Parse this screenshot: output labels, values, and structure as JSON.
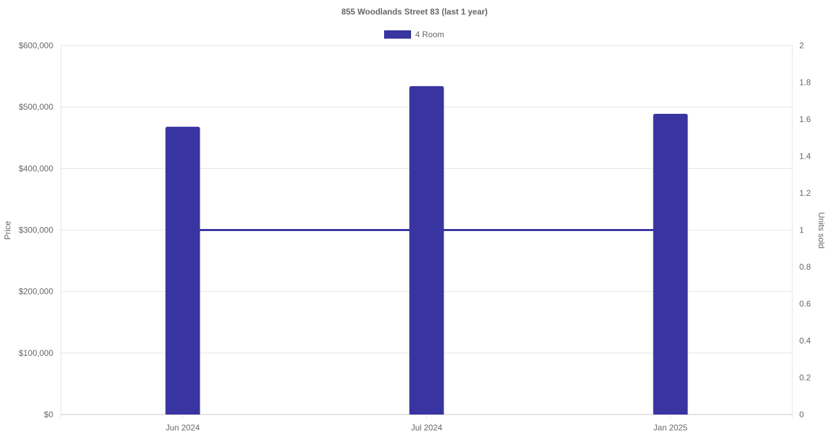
{
  "chart_data": {
    "type": "bar",
    "title": "855 Woodlands Street 83 (last 1 year)",
    "categories": [
      "Jun 2024",
      "Jul 2024",
      "Jan 2025"
    ],
    "series": [
      {
        "name": "4 Room",
        "type": "bar",
        "axis": "left",
        "values": [
          468000,
          534000,
          489000
        ],
        "color": "#3834a0"
      },
      {
        "type": "line",
        "axis": "right",
        "values": [
          1,
          1,
          1
        ],
        "color": "#3834a0"
      }
    ],
    "ylabel": "Price",
    "y2label": "Units sold",
    "ylim": [
      0,
      600000
    ],
    "y2lim": [
      0,
      2
    ],
    "yticks": [
      "$0",
      "$100,000",
      "$200,000",
      "$300,000",
      "$400,000",
      "$500,000",
      "$600,000"
    ],
    "y2ticks": [
      "0",
      "0.2",
      "0.4",
      "0.6",
      "0.8",
      "1",
      "1.2",
      "1.4",
      "1.6",
      "1.8",
      "2"
    ],
    "legend": "top",
    "grid": true
  }
}
